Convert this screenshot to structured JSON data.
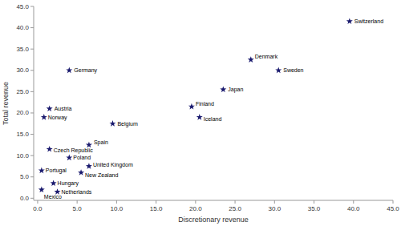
{
  "chart_data": {
    "type": "scatter",
    "x": [
      39.5,
      27.0,
      30.5,
      4.0,
      23.5,
      19.5,
      20.5,
      1.5,
      0.8,
      9.5,
      6.5,
      1.5,
      4.0,
      6.5,
      5.5,
      0.5,
      2.0,
      2.5,
      0.5
    ],
    "values": [
      41.5,
      32.5,
      30.0,
      30.0,
      25.5,
      21.5,
      19.0,
      21.0,
      19.0,
      17.5,
      12.5,
      11.5,
      9.5,
      7.5,
      6.0,
      6.5,
      3.5,
      1.5,
      2.0
    ],
    "annotations": [
      "Switzerland",
      "Denmark",
      "Sweden",
      "Germany",
      "Japan",
      "Finland",
      "Iceland",
      "Austria",
      "Norway",
      "Belgium",
      "Spain",
      "Czech Republic",
      "Poland",
      "United Kingdom",
      "New Zealand",
      "Portugal",
      "Hungary",
      "Netherlands",
      "Mexico"
    ],
    "color": "#1a1a6e",
    "marker": "star",
    "xlabel": "Discretionary revenue",
    "ylabel": "Total revenue",
    "xlim": [
      -0.5,
      45
    ],
    "ylim": [
      -0.5,
      45
    ],
    "xticks": [
      {
        "value": 0,
        "label": "0.0"
      },
      {
        "value": 5,
        "label": "5.0"
      },
      {
        "value": 10,
        "label": "10.0"
      },
      {
        "value": 15,
        "label": "15.0"
      },
      {
        "value": 20,
        "label": "20.0"
      },
      {
        "value": 25,
        "label": "25.0"
      },
      {
        "value": 30,
        "label": "30.0"
      },
      {
        "value": 35,
        "label": "35.0"
      },
      {
        "value": 40,
        "label": "40.0"
      },
      {
        "value": 45,
        "label": "45.0"
      }
    ],
    "yticks": [
      {
        "value": 0,
        "label": "0.0"
      },
      {
        "value": 5,
        "label": "5.0"
      },
      {
        "value": 10,
        "label": "10.0"
      },
      {
        "value": 15,
        "label": "15.0"
      },
      {
        "value": 20,
        "label": "20.0"
      },
      {
        "value": 25,
        "label": "25.0"
      },
      {
        "value": 30,
        "label": "30.0"
      },
      {
        "value": 35,
        "label": "35.0"
      },
      {
        "value": 40,
        "label": "40.0"
      },
      {
        "value": 45,
        "label": "45.0"
      }
    ],
    "grid": false
  }
}
